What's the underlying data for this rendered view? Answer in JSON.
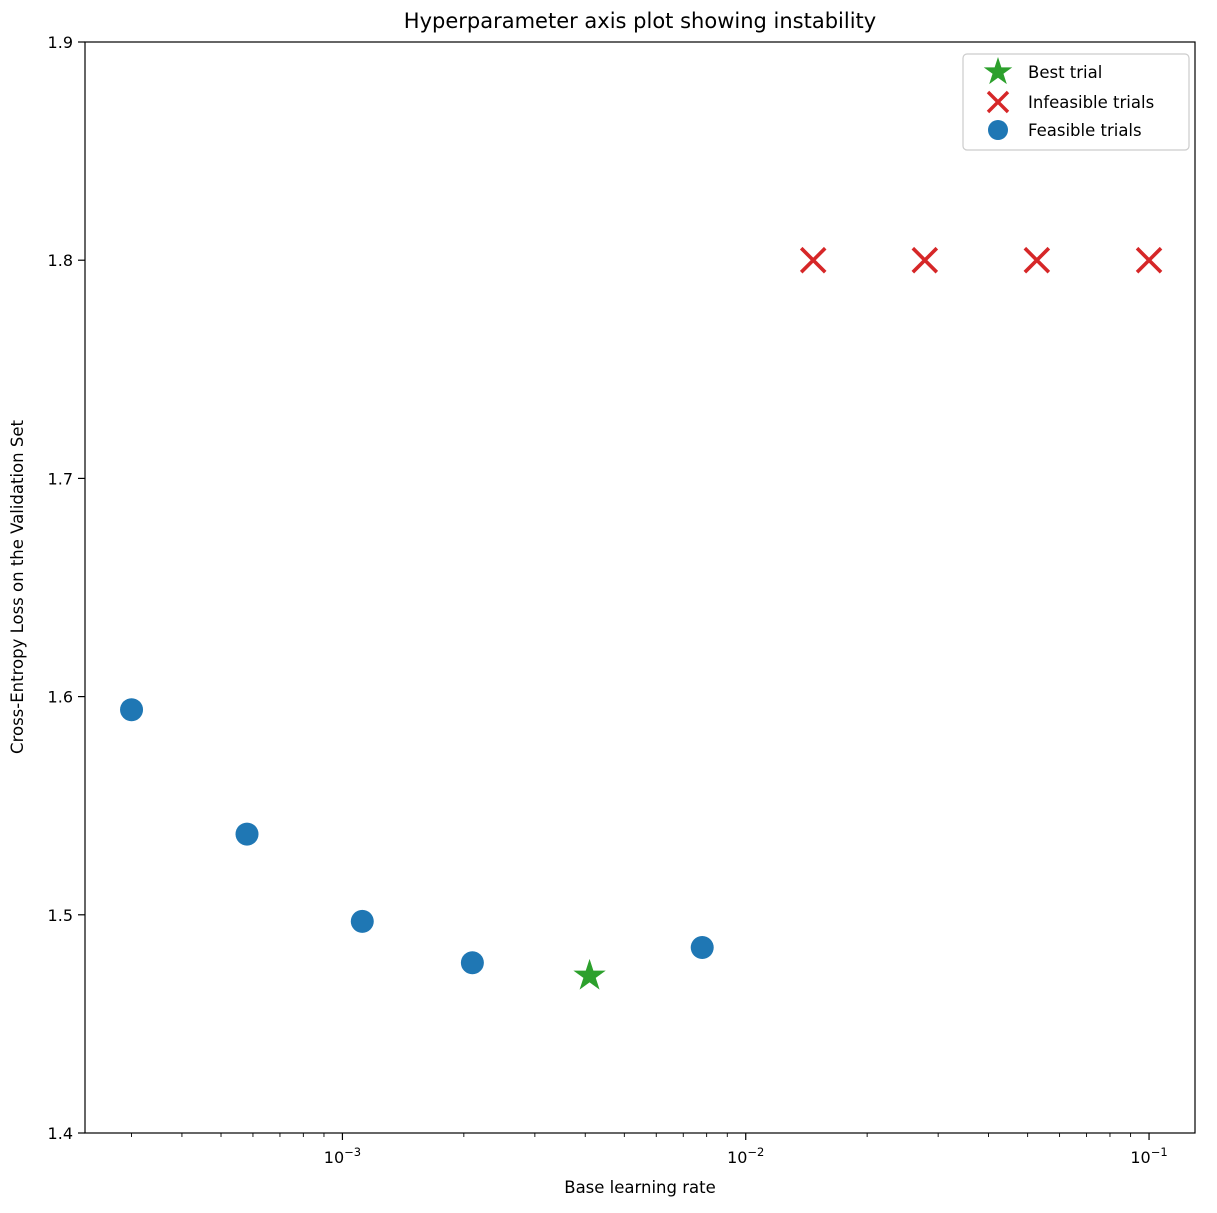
{
  "chart_data": {
    "type": "scatter",
    "title": "Hyperparameter axis plot showing instability",
    "xlabel": "Base learning rate",
    "ylabel": "Cross-Entropy Loss on the Validation Set",
    "x_scale": "log",
    "xlim": [
      0.00023,
      0.13
    ],
    "ylim": [
      1.4,
      1.9
    ],
    "grid": false,
    "legend_position": "upper right",
    "y_ticks": [
      {
        "value": 1.4,
        "label": "1.4"
      },
      {
        "value": 1.5,
        "label": "1.5"
      },
      {
        "value": 1.6,
        "label": "1.6"
      },
      {
        "value": 1.7,
        "label": "1.7"
      },
      {
        "value": 1.8,
        "label": "1.8"
      },
      {
        "value": 1.9,
        "label": "1.9"
      }
    ],
    "x_ticks": [
      {
        "value": 0.001,
        "base": "10",
        "exp": "−3"
      },
      {
        "value": 0.01,
        "base": "10",
        "exp": "−2"
      },
      {
        "value": 0.1,
        "base": "10",
        "exp": "−1"
      }
    ],
    "series": [
      {
        "name": "Feasible trials",
        "marker": "circle",
        "color": "#1f77b4",
        "x": [
          0.0003,
          0.00058,
          0.00112,
          0.0021,
          0.0078
        ],
        "y": [
          1.594,
          1.537,
          1.497,
          1.478,
          1.485
        ]
      },
      {
        "name": "Best trial",
        "marker": "star",
        "color": "#2ca02c",
        "x": [
          0.0041
        ],
        "y": [
          1.472
        ]
      },
      {
        "name": "Infeasible trials",
        "marker": "x",
        "color": "#d62728",
        "x": [
          0.0147,
          0.0278,
          0.0527,
          0.1
        ],
        "y": [
          1.8,
          1.8,
          1.8,
          1.8
        ]
      }
    ],
    "legend": [
      {
        "label": "Best trial",
        "marker": "star",
        "color": "#2ca02c"
      },
      {
        "label": "Infeasible trials",
        "marker": "x",
        "color": "#d62728"
      },
      {
        "label": "Feasible trials",
        "marker": "circle",
        "color": "#1f77b4"
      }
    ]
  }
}
